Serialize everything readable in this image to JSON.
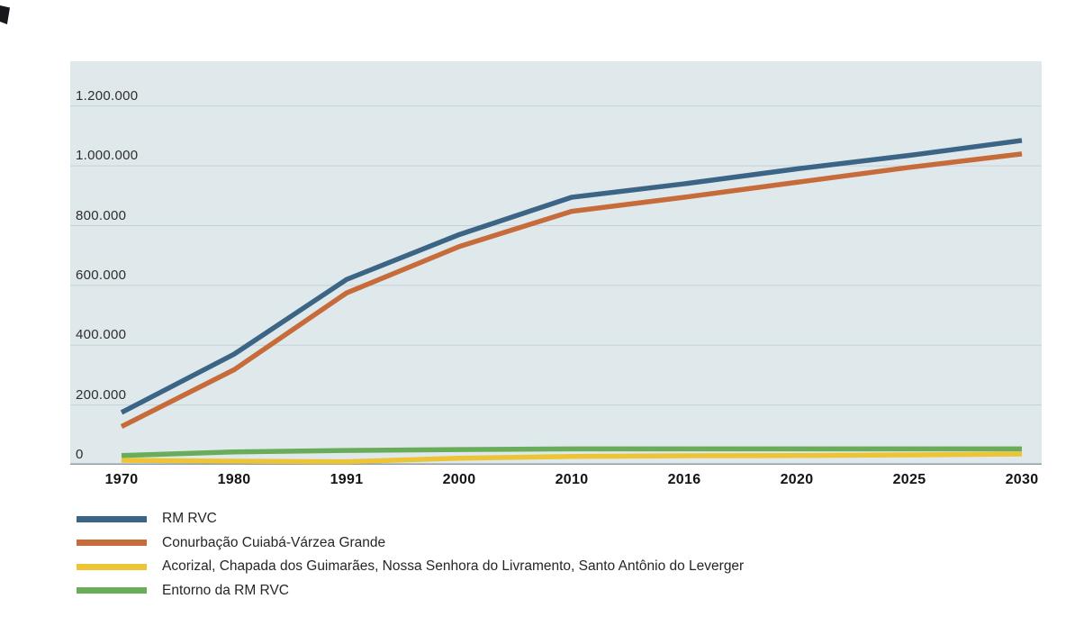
{
  "chart_data": {
    "type": "line",
    "title": "",
    "xlabel": "",
    "ylabel": "",
    "categories": [
      "1970",
      "1980",
      "1991",
      "2000",
      "2010",
      "2016",
      "2020",
      "2025",
      "2030"
    ],
    "series": [
      {
        "name": "RM RVC",
        "color": "#3c6485",
        "values": [
          175000,
          370000,
          620000,
          770000,
          895000,
          940000,
          990000,
          1035000,
          1085000
        ]
      },
      {
        "name": "Conurbação Cuiabá-Várzea Grande",
        "color": "#c76b3b",
        "values": [
          128000,
          318000,
          575000,
          730000,
          848000,
          895000,
          945000,
          995000,
          1040000
        ]
      },
      {
        "name": "Acorizal, Chapada dos Guimarães, Nossa Senhora do Livramento, Santo Antônio do Leverger",
        "color": "#ecc435",
        "values": [
          15000,
          12000,
          10000,
          22000,
          28000,
          30000,
          31000,
          33000,
          36000
        ]
      },
      {
        "name": "Entorno da RM RVC",
        "color": "#69ad5b",
        "values": [
          31000,
          43000,
          48000,
          51000,
          53000,
          53000,
          53000,
          53000,
          53000
        ]
      }
    ],
    "ylim": [
      0,
      1350000
    ],
    "yticks": [
      0,
      200000,
      400000,
      600000,
      800000,
      1000000,
      1200000
    ],
    "ytick_labels": [
      "0",
      "200.000",
      "400.000",
      "600.000",
      "800.000",
      "1.000.000",
      "1.200.000"
    ],
    "grid": "horizontal-only",
    "legend_position": "bottom-left",
    "plot_background": "#dfe9ec",
    "gridline_color": "#c6d2d7",
    "axis_line_color": "#8d9ea6"
  }
}
